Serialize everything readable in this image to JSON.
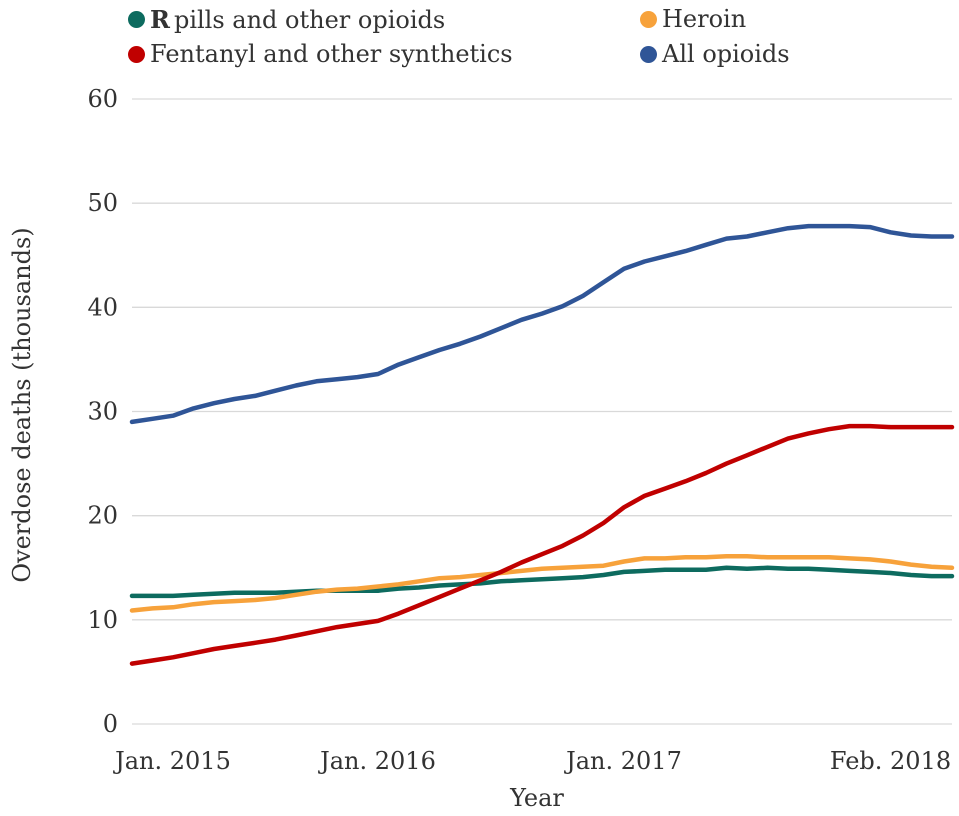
{
  "chart_data": {
    "type": "line",
    "xlabel": "Year",
    "ylabel": "Overdose deaths (thousands)",
    "ylim": [
      0,
      60
    ],
    "yticks": [
      0,
      10,
      20,
      30,
      40,
      50,
      60
    ],
    "grid": "horizontal",
    "legend_position": "top",
    "x_tick_labels": [
      {
        "label": "Jan. 2015",
        "index": 2
      },
      {
        "label": "Jan. 2016",
        "index": 12
      },
      {
        "label": "Jan. 2017",
        "index": 24
      },
      {
        "label": "Feb. 2018",
        "index": 37
      }
    ],
    "x_count": 41,
    "series": [
      {
        "name": "pills and other opioids",
        "prefix": "R",
        "color": "#0d6b5f",
        "values": [
          12.3,
          12.3,
          12.3,
          12.4,
          12.5,
          12.6,
          12.6,
          12.6,
          12.7,
          12.8,
          12.8,
          12.8,
          12.8,
          13.0,
          13.1,
          13.3,
          13.4,
          13.5,
          13.7,
          13.8,
          13.9,
          14.0,
          14.1,
          14.3,
          14.6,
          14.7,
          14.8,
          14.8,
          14.8,
          15.0,
          14.9,
          15.0,
          14.9,
          14.9,
          14.8,
          14.7,
          14.6,
          14.5,
          14.3,
          14.2,
          14.2
        ]
      },
      {
        "name": "Heroin",
        "color": "#f7a23b",
        "values": [
          10.9,
          11.1,
          11.2,
          11.5,
          11.7,
          11.8,
          11.9,
          12.1,
          12.4,
          12.7,
          12.9,
          13.0,
          13.2,
          13.4,
          13.7,
          14.0,
          14.1,
          14.3,
          14.5,
          14.7,
          14.9,
          15.0,
          15.1,
          15.2,
          15.6,
          15.9,
          15.9,
          16.0,
          16.0,
          16.1,
          16.1,
          16.0,
          16.0,
          16.0,
          16.0,
          15.9,
          15.8,
          15.6,
          15.3,
          15.1,
          15.0
        ]
      },
      {
        "name": "Fentanyl and other synthetics",
        "color": "#c00000",
        "values": [
          5.8,
          6.1,
          6.4,
          6.8,
          7.2,
          7.5,
          7.8,
          8.1,
          8.5,
          8.9,
          9.3,
          9.6,
          9.9,
          10.6,
          11.4,
          12.2,
          13.0,
          13.8,
          14.6,
          15.5,
          16.3,
          17.1,
          18.1,
          19.3,
          20.8,
          21.9,
          22.6,
          23.3,
          24.1,
          25.0,
          25.8,
          26.6,
          27.4,
          27.9,
          28.3,
          28.6,
          28.6,
          28.5,
          28.5,
          28.5,
          28.5
        ]
      },
      {
        "name": "All opioids",
        "color": "#2f5597",
        "values": [
          29.0,
          29.3,
          29.6,
          30.3,
          30.8,
          31.2,
          31.5,
          32.0,
          32.5,
          32.9,
          33.1,
          33.3,
          33.6,
          34.5,
          35.2,
          35.9,
          36.5,
          37.2,
          38.0,
          38.8,
          39.4,
          40.1,
          41.1,
          42.4,
          43.7,
          44.4,
          44.9,
          45.4,
          46.0,
          46.6,
          46.8,
          47.2,
          47.6,
          47.8,
          47.8,
          47.8,
          47.7,
          47.2,
          46.9,
          46.8,
          46.8
        ]
      }
    ]
  }
}
